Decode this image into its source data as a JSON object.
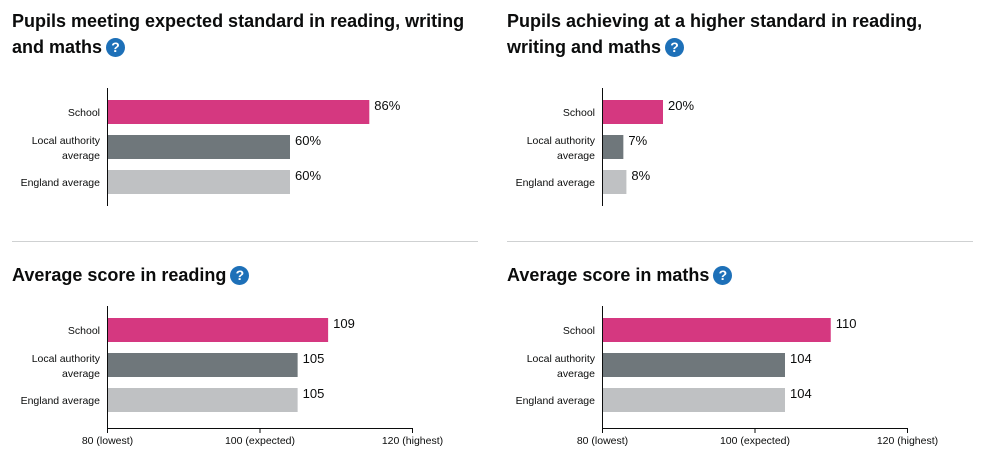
{
  "colors": {
    "school": "#d53880",
    "local_authority": "#6f777b",
    "england": "#bfc1c3",
    "help_icon": "#1d70b8"
  },
  "help_icon_glyph": "?",
  "chart_data": [
    {
      "type": "bar",
      "orientation": "horizontal",
      "title": "Pupils meeting expected standard in reading, writing and maths",
      "categories": [
        "School",
        "Local authority average",
        "England average"
      ],
      "values": [
        86,
        60,
        60
      ],
      "value_labels": [
        "86%",
        "60%",
        "60%"
      ],
      "xlim": [
        0,
        100
      ],
      "show_axis_ticks": false,
      "ticks": []
    },
    {
      "type": "bar",
      "orientation": "horizontal",
      "title": "Pupils achieving at a higher standard in reading, writing and maths",
      "categories": [
        "School",
        "Local authority average",
        "England average"
      ],
      "values": [
        20,
        7,
        8
      ],
      "value_labels": [
        "20%",
        "7%",
        "8%"
      ],
      "xlim": [
        0,
        100
      ],
      "show_axis_ticks": false,
      "ticks": []
    },
    {
      "type": "bar",
      "orientation": "horizontal",
      "title": "Average score in reading",
      "categories": [
        "School",
        "Local authority average",
        "England average"
      ],
      "values": [
        109,
        105,
        105
      ],
      "value_labels": [
        "109",
        "105",
        "105"
      ],
      "xlim": [
        80,
        120
      ],
      "show_axis_ticks": true,
      "ticks": [
        {
          "value": 80,
          "label": "80 (lowest)"
        },
        {
          "value": 100,
          "label": "100 (expected)"
        },
        {
          "value": 120,
          "label": "120 (highest)"
        }
      ]
    },
    {
      "type": "bar",
      "orientation": "horizontal",
      "title": "Average score in maths",
      "categories": [
        "School",
        "Local authority average",
        "England average"
      ],
      "values": [
        110,
        104,
        104
      ],
      "value_labels": [
        "110",
        "104",
        "104"
      ],
      "xlim": [
        80,
        120
      ],
      "show_axis_ticks": true,
      "ticks": [
        {
          "value": 80,
          "label": "80 (lowest)"
        },
        {
          "value": 100,
          "label": "100 (expected)"
        },
        {
          "value": 120,
          "label": "120 (highest)"
        }
      ]
    }
  ]
}
